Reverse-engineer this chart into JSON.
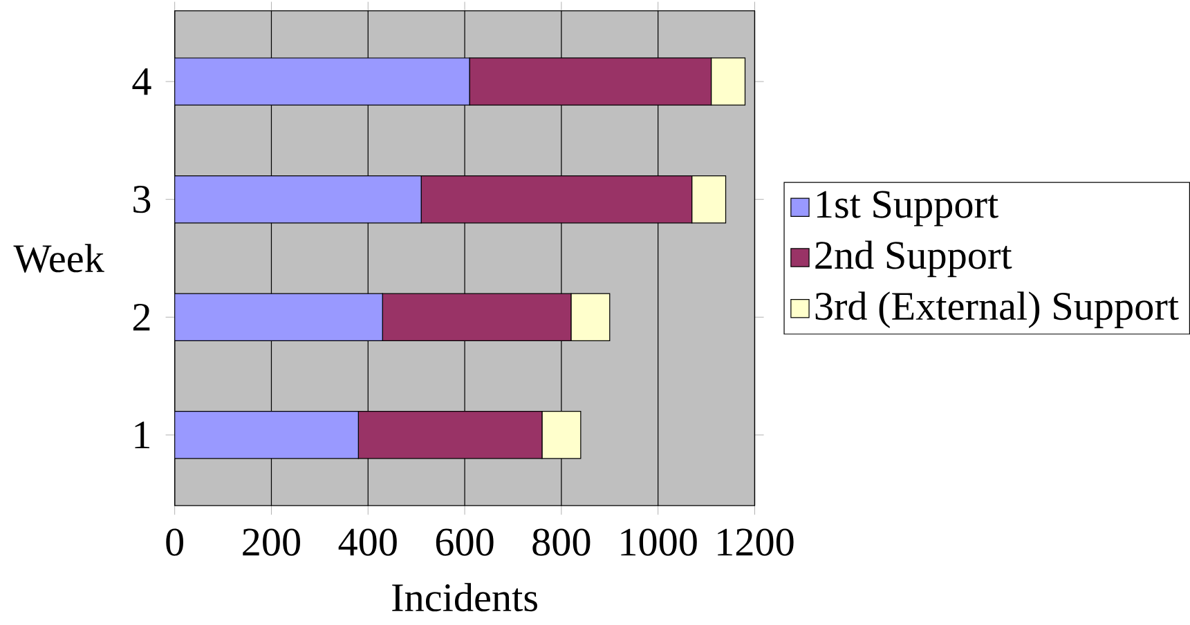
{
  "chart_data": {
    "type": "bar",
    "orientation": "horizontal",
    "stacked": true,
    "xlabel": "Incidents",
    "ylabel": "Week",
    "categories": [
      "4",
      "3",
      "2",
      "1"
    ],
    "series": [
      {
        "name": "1st Support",
        "color": "#9999ff",
        "values": [
          610,
          510,
          430,
          380
        ]
      },
      {
        "name": "2nd Support",
        "color": "#993366",
        "values": [
          500,
          560,
          390,
          380
        ]
      },
      {
        "name": "3rd (External) Support",
        "color": "#ffffcc",
        "values": [
          70,
          70,
          80,
          80
        ]
      }
    ],
    "xlim": [
      0,
      1200
    ],
    "xticks": [
      0,
      200,
      400,
      600,
      800,
      1000,
      1200
    ],
    "grid": "x",
    "legend": "right"
  }
}
